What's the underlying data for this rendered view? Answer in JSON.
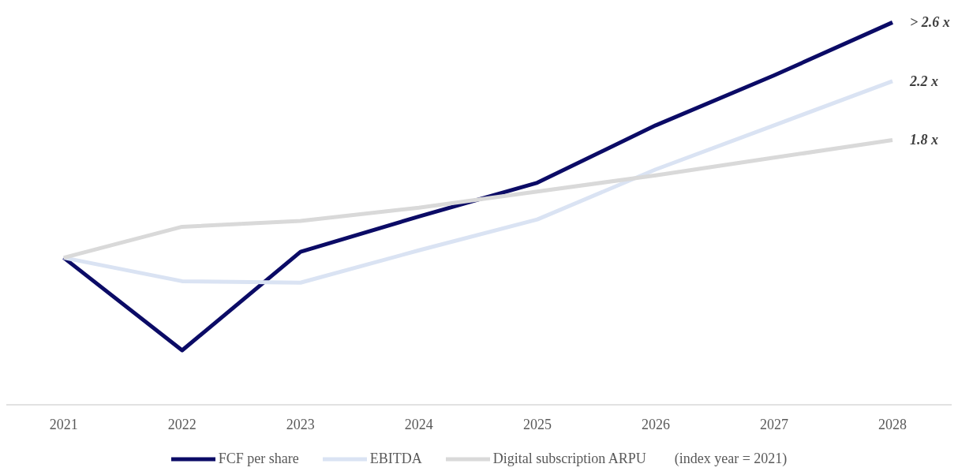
{
  "chart_data": {
    "type": "line",
    "tick_labels": "x",
    "categories": [
      "2021",
      "2022",
      "2023",
      "2024",
      "2025",
      "2026",
      "2027",
      "2028"
    ],
    "series": [
      {
        "name": "FCF per share",
        "color": "#0b0b66",
        "values": [
          1,
          0.37,
          1.04,
          1.28,
          1.51,
          1.9,
          2.24,
          2.6
        ],
        "value_labels": [
          null,
          null,
          null,
          null,
          null,
          null,
          null,
          "> 2.6 x"
        ]
      },
      {
        "name": "EBITDA",
        "color": "#dae3f3",
        "values": [
          1,
          0.84,
          0.83,
          1.05,
          1.26,
          1.6,
          1.9,
          2.2
        ],
        "value_labels": [
          null,
          null,
          null,
          null,
          null,
          null,
          null,
          "2.2 x"
        ]
      },
      {
        "name": "Digital subscription ARPU",
        "color": "#d9d9d9",
        "values": [
          1,
          1.21,
          1.25,
          1.34,
          1.45,
          1.56,
          1.68,
          1.8
        ],
        "value_labels": [
          null,
          null,
          null,
          null,
          null,
          null,
          null,
          "1.8 x"
        ]
      }
    ],
    "annotations": [
      "(index year = 2021)"
    ],
    "legend": "bottom",
    "grid": false,
    "marker": "none",
    "line_style": "solid"
  }
}
